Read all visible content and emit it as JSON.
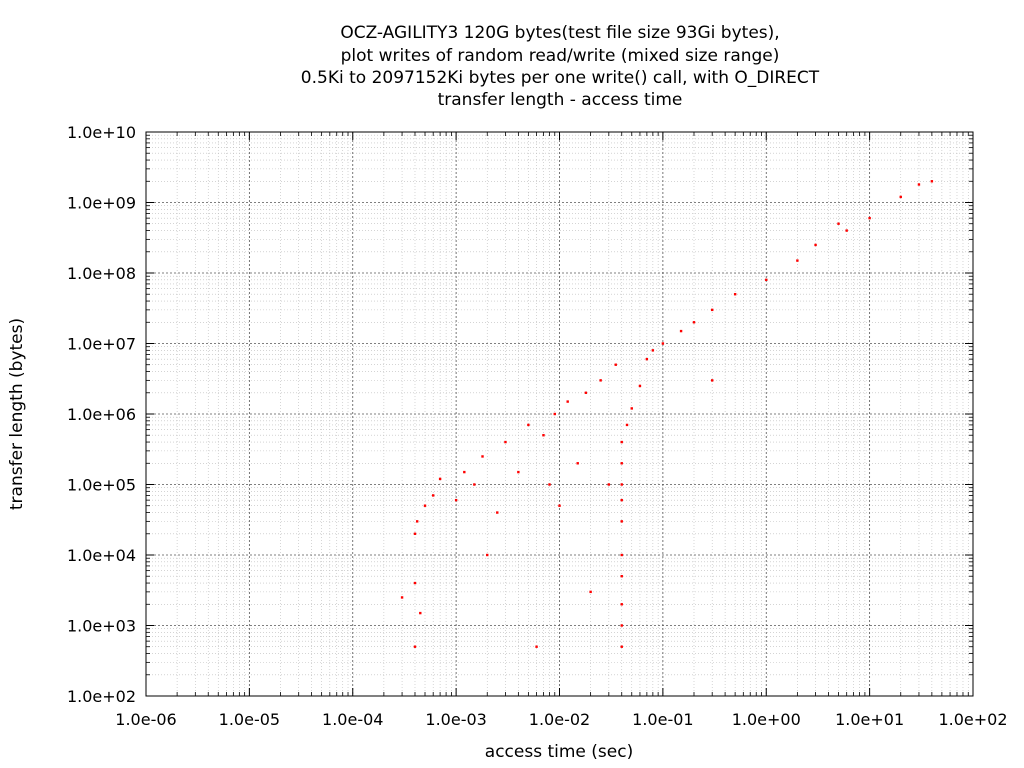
{
  "chart_data": {
    "type": "scatter",
    "title": [
      "OCZ-AGILITY3 120G bytes(test file size 93Gi bytes),",
      "plot writes of random read/write (mixed size range)",
      "0.5Ki to 2097152Ki bytes per one write() call, with O_DIRECT",
      "transfer length - access time"
    ],
    "xlabel": "access time (sec)",
    "ylabel": "transfer length (bytes)",
    "x_scale": "log",
    "y_scale": "log",
    "xlim": [
      1e-06,
      100
    ],
    "ylim": [
      100,
      10000000000
    ],
    "x_ticks": [
      "1.0e-06",
      "1.0e-05",
      "1.0e-04",
      "1.0e-03",
      "1.0e-02",
      "1.0e-01",
      "1.0e+00",
      "1.0e+01",
      "1.0e+02"
    ],
    "y_ticks": [
      "1.0e+02",
      "1.0e+03",
      "1.0e+04",
      "1.0e+05",
      "1.0e+06",
      "1.0e+07",
      "1.0e+08",
      "1.0e+09",
      "1.0e+10"
    ],
    "grid": true,
    "point_color": "#ff0000",
    "series": [
      {
        "points": [
          [
            0.0003,
            2500
          ],
          [
            0.0004,
            500
          ],
          [
            0.00045,
            1500
          ],
          [
            0.0004,
            4000
          ],
          [
            0.0004,
            20000
          ],
          [
            0.00042,
            30000
          ],
          [
            0.0005,
            50000
          ],
          [
            0.0006,
            70000
          ],
          [
            0.0007,
            120000
          ],
          [
            0.001,
            60000
          ],
          [
            0.0012,
            150000
          ],
          [
            0.0015,
            100000
          ],
          [
            0.0018,
            250000
          ],
          [
            0.002,
            10000
          ],
          [
            0.0025,
            40000
          ],
          [
            0.003,
            400000
          ],
          [
            0.004,
            150000
          ],
          [
            0.005,
            700000
          ],
          [
            0.006,
            500
          ],
          [
            0.007,
            500000
          ],
          [
            0.008,
            100000
          ],
          [
            0.009,
            1000000
          ],
          [
            0.01,
            50000
          ],
          [
            0.012,
            1500000
          ],
          [
            0.015,
            200000
          ],
          [
            0.018,
            2000000
          ],
          [
            0.02,
            3000
          ],
          [
            0.025,
            3000000
          ],
          [
            0.03,
            100000
          ],
          [
            0.035,
            5000000
          ],
          [
            0.04,
            500
          ],
          [
            0.04,
            1000
          ],
          [
            0.04,
            2000
          ],
          [
            0.04,
            5000
          ],
          [
            0.04,
            10000
          ],
          [
            0.04,
            30000
          ],
          [
            0.04,
            60000
          ],
          [
            0.04,
            100000
          ],
          [
            0.04,
            200000
          ],
          [
            0.04,
            400000
          ],
          [
            0.045,
            700000
          ],
          [
            0.05,
            1200000
          ],
          [
            0.06,
            2500000
          ],
          [
            0.07,
            6000000
          ],
          [
            0.08,
            8000000
          ],
          [
            0.1,
            10000000
          ],
          [
            0.15,
            15000000
          ],
          [
            0.2,
            20000000
          ],
          [
            0.3,
            30000000
          ],
          [
            0.5,
            50000000
          ],
          [
            1.0,
            80000000
          ],
          [
            2.0,
            150000000
          ],
          [
            3.0,
            250000000
          ],
          [
            5.0,
            500000000
          ],
          [
            6.0,
            400000000
          ],
          [
            10.0,
            600000000
          ],
          [
            20.0,
            1200000000
          ],
          [
            30.0,
            1800000000
          ],
          [
            40.0,
            2000000000
          ],
          [
            0.3,
            3000000
          ]
        ]
      }
    ]
  }
}
